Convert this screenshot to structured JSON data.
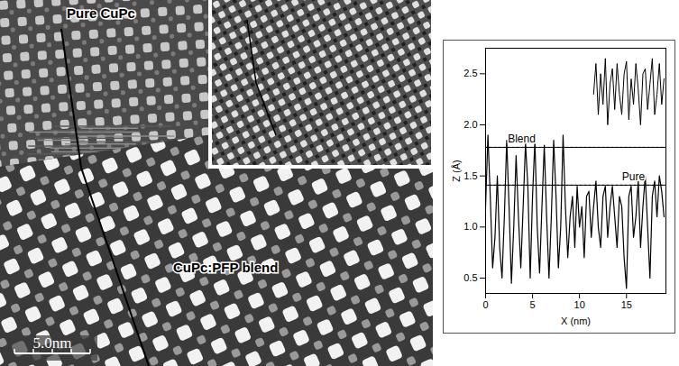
{
  "image": {
    "labels": [
      "Pure CuPc",
      "CuPc:PFP blend"
    ],
    "scale_bar": "5.0nm"
  },
  "chart_data": {
    "type": "line",
    "xlabel": "X (nm)",
    "ylabel": "Z (Å)",
    "x": [
      0,
      0.25,
      0.5,
      0.75,
      1,
      1.25,
      1.5,
      1.75,
      2,
      2.25,
      2.5,
      2.75,
      3,
      3.25,
      3.5,
      3.75,
      4,
      4.25,
      4.5,
      4.75,
      5,
      5.25,
      5.5,
      5.75,
      6,
      6.25,
      6.5,
      6.75,
      7,
      7.25,
      7.5,
      7.75,
      8,
      8.25,
      8.5,
      8.75,
      9,
      9.25,
      9.5,
      9.75,
      10,
      10.25,
      10.5,
      10.75,
      11,
      11.25,
      11.5,
      11.75,
      12,
      12.25,
      12.5,
      12.75,
      13,
      13.25,
      13.5,
      13.75,
      14,
      14.25,
      14.5,
      14.75,
      15,
      15.25,
      15.5,
      15.75,
      16,
      16.25,
      16.5,
      16.75,
      17,
      17.25,
      17.5,
      17.75,
      18,
      18.25,
      18.5,
      18.75,
      19
    ],
    "values": [
      1.2,
      1.9,
      1.3,
      0.6,
      0.9,
      1.5,
      0.8,
      0.5,
      1.1,
      1.85,
      1.2,
      0.45,
      1.0,
      1.7,
      1.1,
      0.6,
      1.2,
      1.82,
      1.4,
      0.5,
      1.3,
      1.85,
      1.0,
      0.55,
      1.2,
      1.8,
      1.1,
      0.5,
      1.1,
      1.85,
      1.3,
      0.6,
      1.0,
      1.9,
      1.2,
      0.7,
      1.1,
      1.3,
      0.8,
      1.4,
      1.0,
      1.2,
      0.7,
      1.3,
      1.35,
      0.9,
      1.2,
      1.45,
      1.0,
      0.8,
      1.3,
      1.4,
      0.9,
      1.2,
      1.4,
      1.1,
      0.8,
      1.3,
      1.2,
      0.7,
      0.4,
      1.3,
      1.4,
      0.9,
      1.1,
      1.45,
      0.8,
      1.2,
      1.5,
      1.0,
      0.5,
      1.3,
      1.45,
      1.1,
      1.5,
      1.35,
      1.1
    ],
    "color": "#000000",
    "xlim": [
      0,
      19.2
    ],
    "ylim": [
      0.35,
      2.75
    ],
    "xticks": [
      0,
      5,
      10,
      15
    ],
    "yticks": [
      0.5,
      {
        "value": 1,
        "label": "1.0"
      },
      1.5,
      {
        "value": 2,
        "label": "2.0"
      },
      2.5
    ],
    "reference_lines": [
      {
        "label": "Blend",
        "value": 1.78,
        "line_style": "dotted"
      },
      {
        "label": "Pure",
        "value": 1.41,
        "line_style": "dotted"
      }
    ],
    "inset": {
      "x": [
        11.5,
        11.75,
        12,
        12.25,
        12.5,
        12.75,
        13,
        13.25,
        13.5,
        13.75,
        14,
        14.25,
        14.5,
        14.75,
        15,
        15.25,
        15.5,
        15.75,
        16,
        16.25,
        16.5,
        16.75,
        17,
        17.25,
        17.5,
        17.75,
        18,
        18.25,
        18.5,
        18.75,
        19
      ],
      "values": [
        2.3,
        2.6,
        2.1,
        2.5,
        2.2,
        2.65,
        2.0,
        2.4,
        2.55,
        2.15,
        2.6,
        2.3,
        2.1,
        2.5,
        2.62,
        2.05,
        2.45,
        2.2,
        2.6,
        2.35,
        2.0,
        2.5,
        2.55,
        2.15,
        2.4,
        2.65,
        2.1,
        2.3,
        2.6,
        2.2,
        2.45
      ]
    }
  }
}
